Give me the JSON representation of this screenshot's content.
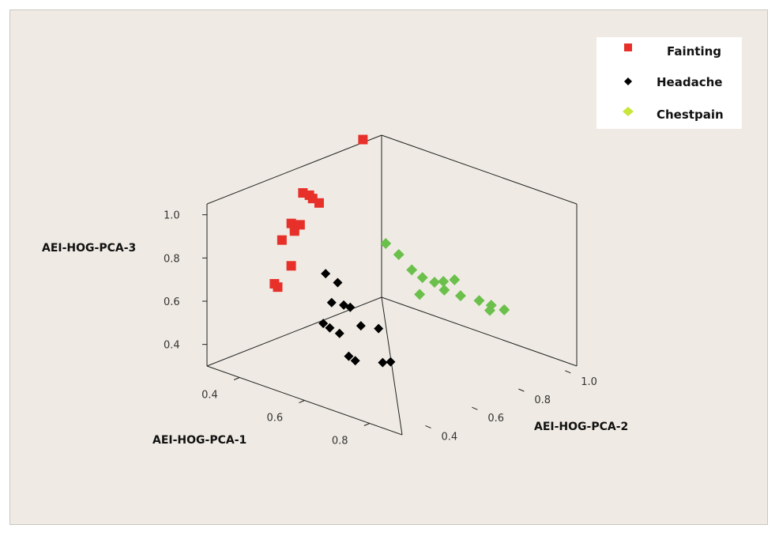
{
  "chart_data": {
    "type": "scatter",
    "projection": "3d",
    "title": "",
    "axes": {
      "x": {
        "label": "AEI-HOG-PCA-1",
        "range": [
          0.3,
          0.9
        ],
        "ticks": [
          0.4,
          0.6,
          0.8
        ],
        "tick_labels": [
          "0.4",
          "0.6",
          "0.8"
        ]
      },
      "y": {
        "label": "AEI-HOG-PCA-2",
        "range": [
          0.3,
          1.05
        ],
        "ticks": [
          0.4,
          0.6,
          0.8,
          1.0
        ],
        "tick_labels": [
          "0.4",
          "0.6",
          "0.8",
          "1.0"
        ]
      },
      "z": {
        "label": "AEI-HOG-PCA-3",
        "range": [
          0.3,
          1.05
        ],
        "ticks": [
          0.4,
          0.6,
          0.8,
          1.0
        ],
        "tick_labels": [
          "0.4",
          "0.6",
          "0.8",
          "1.0"
        ]
      }
    },
    "legend_position": "top-right",
    "series": [
      {
        "name": "Fainting",
        "marker": "square",
        "color": "#e8302a",
        "points": [
          [
            0.35,
            0.9,
            1.12
          ],
          [
            0.33,
            0.67,
            0.96
          ],
          [
            0.35,
            0.67,
            0.96
          ],
          [
            0.36,
            0.67,
            0.95
          ],
          [
            0.38,
            0.67,
            0.94
          ],
          [
            0.33,
            0.62,
            0.84
          ],
          [
            0.35,
            0.63,
            0.84
          ],
          [
            0.34,
            0.62,
            0.82
          ],
          [
            0.34,
            0.62,
            0.81
          ],
          [
            0.33,
            0.58,
            0.78
          ],
          [
            0.38,
            0.55,
            0.7
          ],
          [
            0.4,
            0.45,
            0.67
          ],
          [
            0.41,
            0.45,
            0.66
          ]
        ]
      },
      {
        "name": "Headache",
        "marker": "diamond",
        "color": "#000000",
        "points": [
          [
            0.45,
            0.6,
            0.68
          ],
          [
            0.48,
            0.61,
            0.65
          ],
          [
            0.49,
            0.57,
            0.58
          ],
          [
            0.52,
            0.58,
            0.58
          ],
          [
            0.54,
            0.58,
            0.58
          ],
          [
            0.5,
            0.52,
            0.51
          ],
          [
            0.52,
            0.52,
            0.5
          ],
          [
            0.55,
            0.52,
            0.49
          ],
          [
            0.58,
            0.57,
            0.52
          ],
          [
            0.62,
            0.59,
            0.52
          ],
          [
            0.65,
            0.42,
            0.48
          ],
          [
            0.67,
            0.42,
            0.47
          ],
          [
            0.74,
            0.44,
            0.49
          ],
          [
            0.75,
            0.46,
            0.49
          ]
        ]
      },
      {
        "name": "Chestpain",
        "marker": "diamond",
        "color": "#6bc04b",
        "legend_color": "#c8e63c",
        "points": [
          [
            0.37,
            0.97,
            0.62
          ],
          [
            0.41,
            0.97,
            0.59
          ],
          [
            0.45,
            0.97,
            0.54
          ],
          [
            0.49,
            0.96,
            0.53
          ],
          [
            0.52,
            0.97,
            0.52
          ],
          [
            0.54,
            0.98,
            0.53
          ],
          [
            0.56,
            1.0,
            0.54
          ],
          [
            0.51,
            0.92,
            0.48
          ],
          [
            0.55,
            0.97,
            0.5
          ],
          [
            0.6,
            0.97,
            0.5
          ],
          [
            0.65,
            0.98,
            0.5
          ],
          [
            0.68,
            0.99,
            0.49
          ],
          [
            0.69,
            0.97,
            0.48
          ],
          [
            0.72,
            0.99,
            0.49
          ]
        ]
      }
    ]
  }
}
